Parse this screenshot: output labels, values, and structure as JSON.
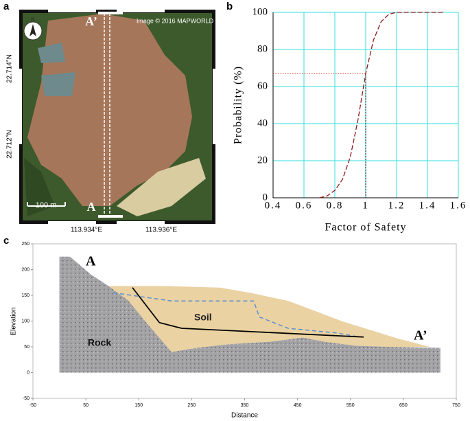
{
  "panel_labels": [
    "a",
    "b",
    "c"
  ],
  "map_panel": {
    "section_top": "A’",
    "section_bottom": "A",
    "credit": "Image © 2016 MAPWORLD",
    "scale_bar": "100 m",
    "north": "N",
    "lat_labels": [
      "22.714°N",
      "22.712°N"
    ],
    "lon_labels": [
      "113.934°E",
      "113.936°E"
    ]
  },
  "chart_data": [
    {
      "type": "line",
      "x_label": "Factor of Safety",
      "y_label": "Probability (%)",
      "x": [
        0.7,
        0.75,
        0.8,
        0.85,
        0.9,
        0.95,
        1.0,
        1.05,
        1.1,
        1.15,
        1.2,
        1.3,
        1.5
      ],
      "series": [
        {
          "color": "#8b1a1a",
          "values": [
            0,
            1,
            4,
            10,
            22,
            42,
            67,
            85,
            95,
            99,
            100,
            100,
            100
          ]
        }
      ],
      "reference": {
        "x": 1,
        "y": 67,
        "color": "#e03020"
      },
      "xlim": [
        0.4,
        1.6
      ],
      "xticks": [
        0.4,
        0.6,
        0.8,
        1,
        1.2,
        1.4,
        1.6
      ],
      "ylim": [
        0,
        100
      ],
      "yticks": [
        0,
        20,
        40,
        60,
        80,
        100
      ],
      "grid": true,
      "grid_color": "#33dddd"
    },
    {
      "type": "area",
      "x_label": "Distance",
      "y_label": "Elevation",
      "layers": [
        {
          "name": "Soil",
          "color": "#ead2a2",
          "x": [
            93,
            200,
            303,
            360,
            433,
            536,
            640,
            700,
            620,
            560,
            500,
            460,
            400,
            320,
            260,
            212,
            170,
            130
          ],
          "values": [
            168,
            168,
            165,
            155,
            139,
            99,
            66,
            50,
            50,
            52,
            60,
            68,
            60,
            55,
            48,
            40,
            90,
            140
          ]
        },
        {
          "name": "Rock",
          "color": "#a3a3a6",
          "x": [
            0,
            0,
            20,
            60,
            93,
            130,
            170,
            212,
            260,
            320,
            400,
            460,
            500,
            560,
            620,
            720,
            720
          ],
          "values": [
            0,
            225,
            225,
            190,
            168,
            140,
            90,
            40,
            48,
            55,
            60,
            68,
            60,
            52,
            50,
            48,
            0
          ]
        }
      ],
      "lines": [
        {
          "color": "#5b8fd0",
          "dashed": true,
          "x": [
            102,
            212,
            367,
            378,
            432,
            523,
            568
          ],
          "values": [
            155,
            139,
            139,
            108,
            86,
            77,
            69
          ]
        },
        {
          "color": "#000000",
          "dashed": false,
          "x": [
            138,
            189,
            231,
            575
          ],
          "values": [
            165,
            97,
            86,
            69
          ]
        }
      ],
      "section_labels": [
        "A",
        "A’"
      ],
      "xlim": [
        -50,
        750
      ],
      "xticks": [
        -50,
        50,
        150,
        250,
        350,
        450,
        550,
        650,
        750
      ],
      "ylim": [
        -50,
        250
      ],
      "yticks": [
        -50,
        0,
        50,
        100,
        150,
        200,
        250
      ]
    }
  ]
}
